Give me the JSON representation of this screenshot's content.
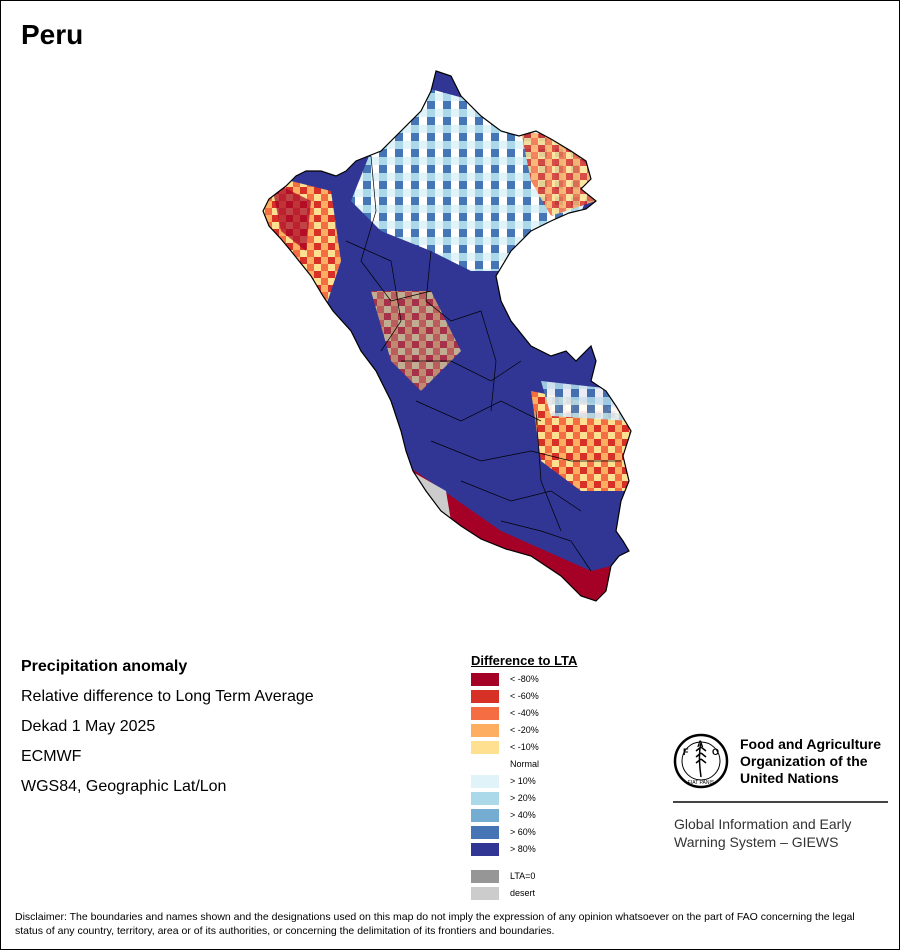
{
  "title": "Peru",
  "meta": {
    "line1": "Precipitation anomaly",
    "line2": "Relative difference to Long Term Average",
    "line3": "Dekad 1 May 2025",
    "line4": "ECMWF",
    "line5": "WGS84, Geographic Lat/Lon"
  },
  "legend": {
    "title": "Difference to LTA",
    "items": [
      {
        "label": "< -80%",
        "color": "#a50026"
      },
      {
        "label": "< -60%",
        "color": "#d73027"
      },
      {
        "label": "< -40%",
        "color": "#f46d43"
      },
      {
        "label": "< -20%",
        "color": "#fdae61"
      },
      {
        "label": "< -10%",
        "color": "#fee090"
      },
      {
        "label": "Normal",
        "color": "#ffffff"
      },
      {
        "label": "> 10%",
        "color": "#e0f3f8"
      },
      {
        "label": "> 20%",
        "color": "#abd9e9"
      },
      {
        "label": "> 40%",
        "color": "#74add1"
      },
      {
        "label": "> 60%",
        "color": "#4575b4"
      },
      {
        "label": "> 80%",
        "color": "#313695"
      },
      {
        "label": "LTA=0",
        "color": "#969696"
      },
      {
        "label": "desert",
        "color": "#cccccc"
      }
    ]
  },
  "org": {
    "name": "Food and Agriculture Organization of the United Nations",
    "logo_text": "FAO",
    "logo_motto": "FIAT PANIS",
    "system": "Global Information and Early Warning System – GIEWS"
  },
  "disclaimer": "Disclaimer: The boundaries and names shown and the designations used on this map do not imply the expression of any opinion whatsoever on the part of FAO concerning the legal status of any country, territory, area or of its authorities, or concerning the delimitation of its frontiers and boundaries."
}
